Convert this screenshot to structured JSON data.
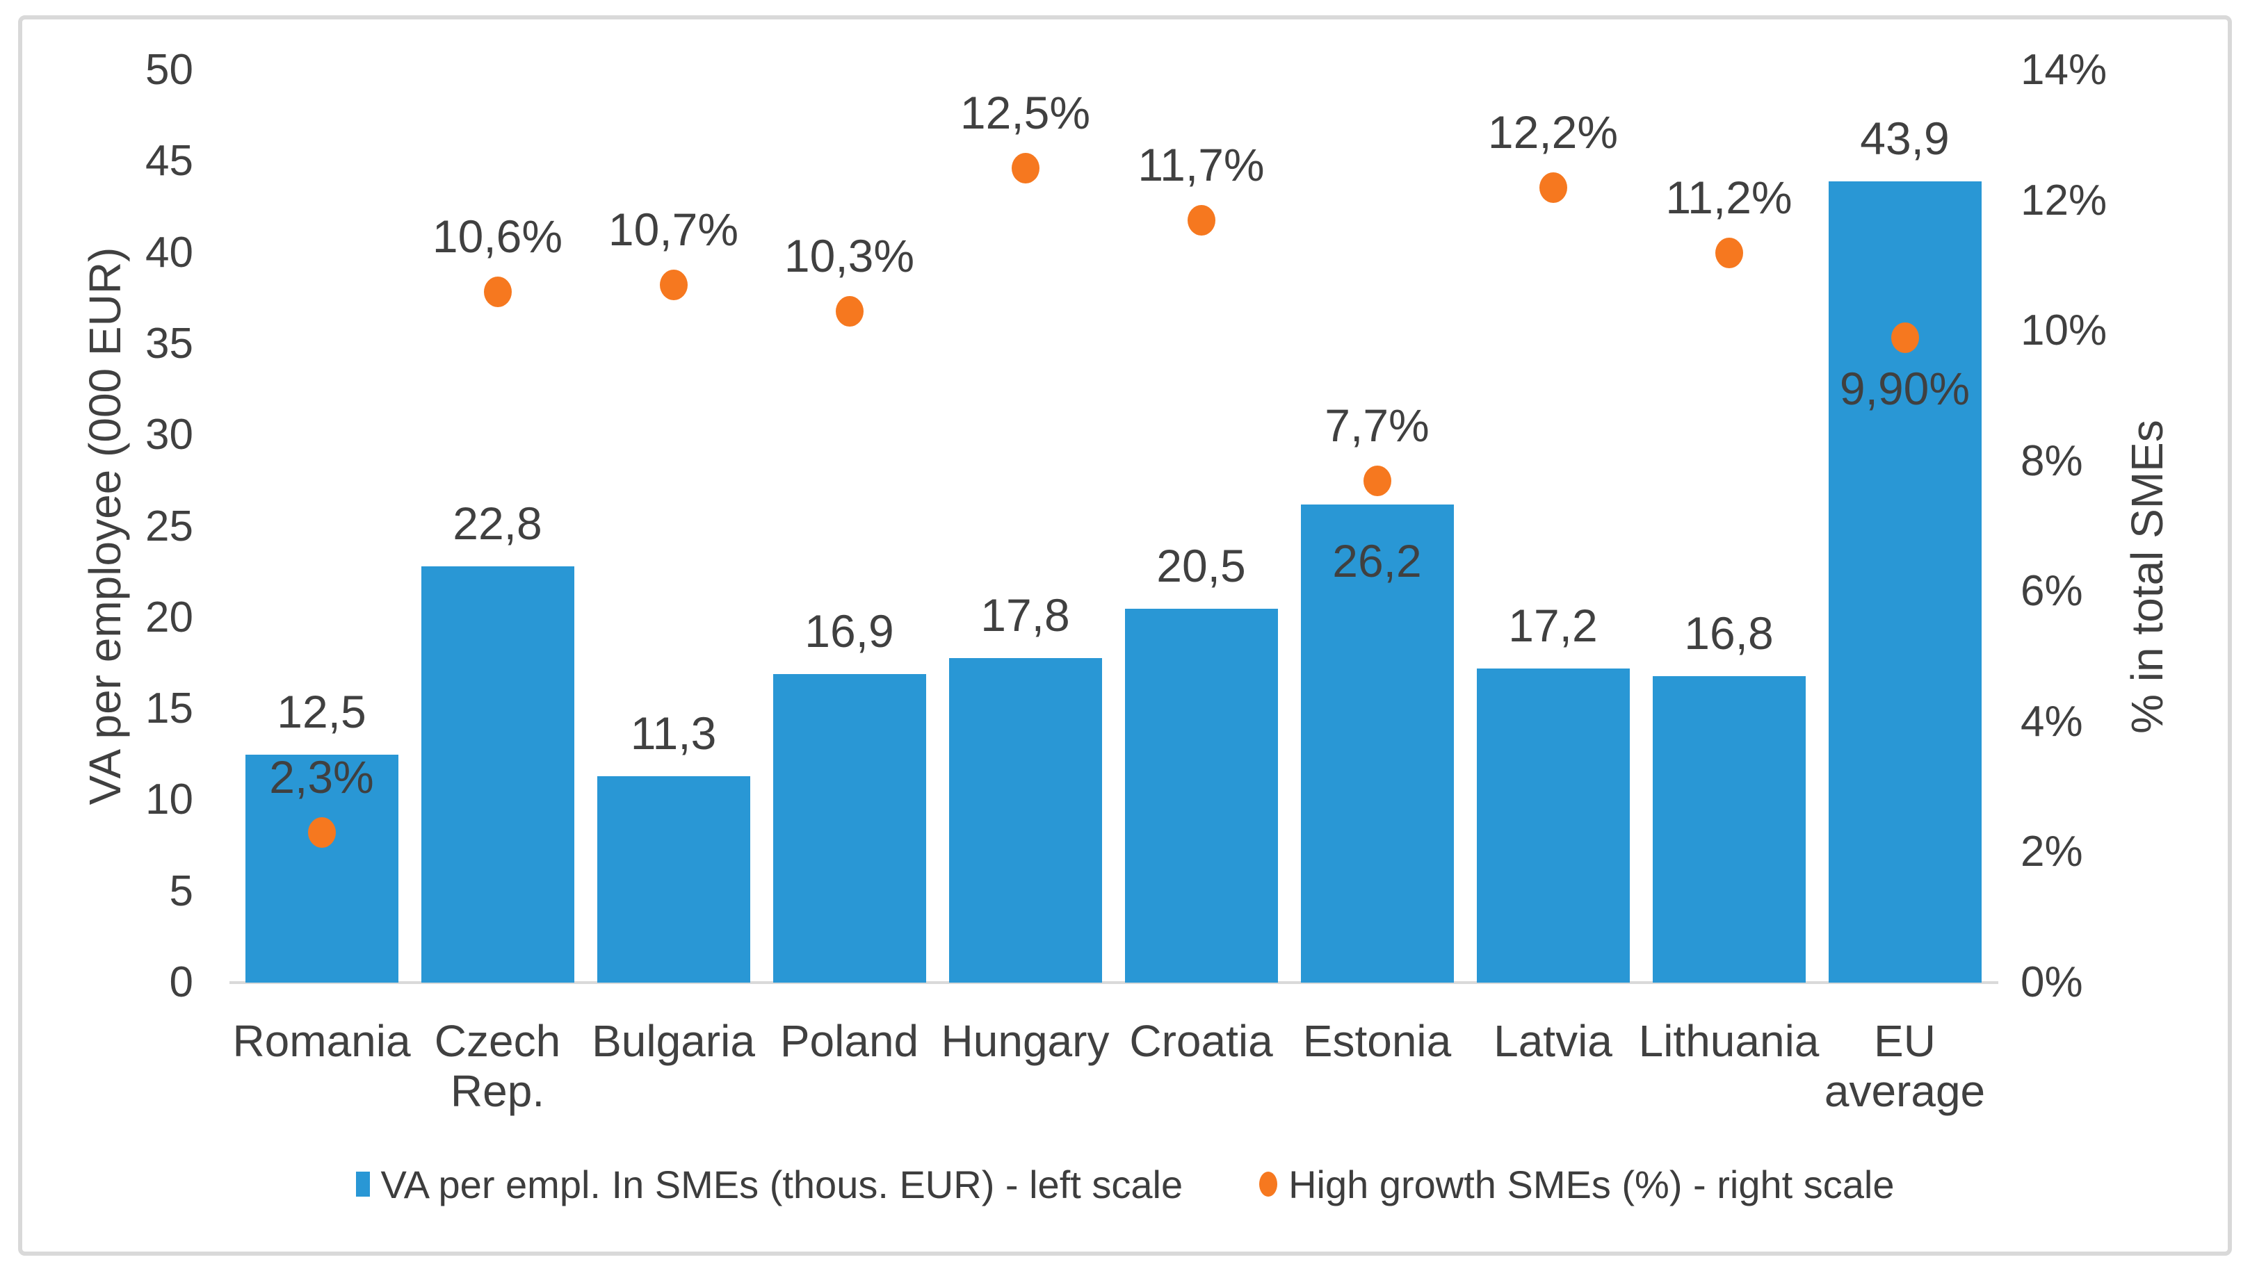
{
  "colors": {
    "bar": "#2997d5",
    "dot": "#f6781f",
    "text": "#404040",
    "axis_line": "#d9d9d9",
    "frame_border": "#d9d9d9",
    "background": "#ffffff"
  },
  "chart_data": {
    "type": "bar",
    "subtype": "combo bar + scatter, dual axis",
    "categories": [
      "Romania",
      "Czech Rep.",
      "Bulgaria",
      "Poland",
      "Hungary",
      "Croatia",
      "Estonia",
      "Latvia",
      "Lithuania",
      "EU average"
    ],
    "category_lines": [
      [
        "Romania"
      ],
      [
        "Czech",
        "Rep."
      ],
      [
        "Bulgaria"
      ],
      [
        "Poland"
      ],
      [
        "Hungary"
      ],
      [
        "Croatia"
      ],
      [
        "Estonia"
      ],
      [
        "Latvia"
      ],
      [
        "Lithuania"
      ],
      [
        "EU",
        "average"
      ]
    ],
    "series": [
      {
        "name": "VA per empl. In SMEs (thous. EUR) - left scale",
        "type": "bar",
        "axis": "left",
        "values": [
          12.5,
          22.8,
          11.3,
          16.9,
          17.8,
          20.5,
          26.2,
          17.2,
          16.8,
          43.9
        ],
        "labels": [
          "12,5",
          "22,8",
          "11,3",
          "16,9",
          "17,8",
          "20,5",
          "26,2",
          "17,2",
          "16,8",
          "43,9"
        ],
        "label_pos": [
          "above",
          "above",
          "above",
          "above",
          "above",
          "above",
          "inside",
          "above",
          "above",
          "above"
        ]
      },
      {
        "name": "High growth SMEs (%) - right scale",
        "type": "scatter",
        "axis": "right",
        "values": [
          2.3,
          10.6,
          10.7,
          10.3,
          12.5,
          11.7,
          7.7,
          12.2,
          11.2,
          9.9
        ],
        "labels": [
          "2,3%",
          "10,6%",
          "10,7%",
          "10,3%",
          "12,5%",
          "11,7%",
          "7,7%",
          "12,2%",
          "11,2%",
          "9,90%"
        ],
        "label_pos": [
          "above",
          "above",
          "above",
          "above",
          "above",
          "above",
          "above",
          "above",
          "above",
          "below"
        ]
      }
    ],
    "left_axis": {
      "title": "VA per employee (000 EUR)",
      "min": 0,
      "max": 50,
      "step": 5,
      "ticks": [
        "0",
        "5",
        "10",
        "15",
        "20",
        "25",
        "30",
        "35",
        "40",
        "45",
        "50"
      ]
    },
    "right_axis": {
      "title": "% in total SMEs",
      "min": 0,
      "max": 14,
      "step": 2,
      "ticks": [
        "0%",
        "2%",
        "4%",
        "6%",
        "8%",
        "10%",
        "12%",
        "14%"
      ]
    },
    "grid": false,
    "legend_position": "bottom"
  },
  "legend": {
    "items": [
      {
        "label": "VA per empl. In SMEs (thous. EUR) - left scale",
        "marker": "square",
        "color": "#2997d5"
      },
      {
        "label": "High growth SMEs (%) - right scale",
        "marker": "circle",
        "color": "#f6781f"
      }
    ]
  }
}
